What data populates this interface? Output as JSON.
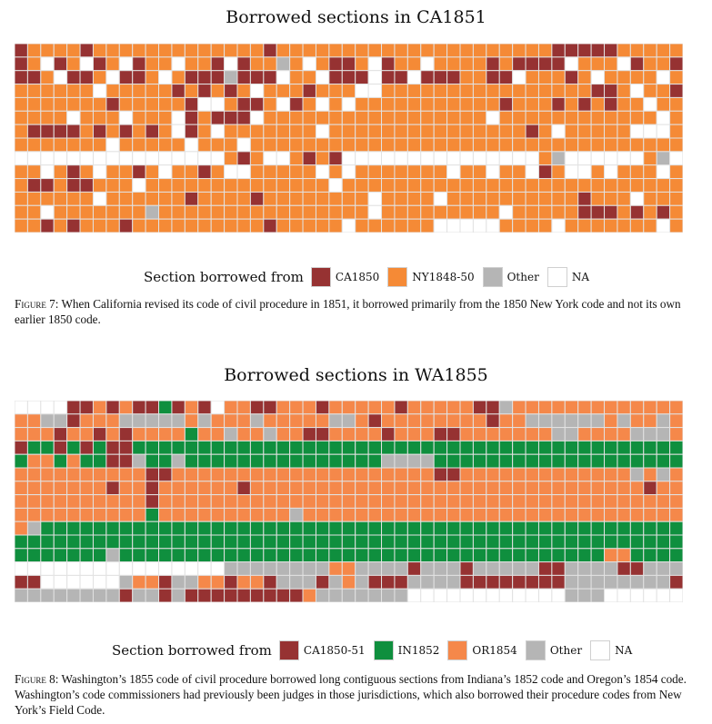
{
  "chart_data": [
    {
      "type": "heatmap",
      "title": "Borrowed sections in CA1851",
      "legend_lead": "Section borrowed from",
      "cols": 51,
      "rows": 14,
      "legend": [
        {
          "code": "C",
          "label": "CA1850",
          "color": "#963232"
        },
        {
          "code": "N",
          "label": "NY1848-50",
          "color": "#f58a36"
        },
        {
          "code": "G",
          "label": "Other",
          "color": "#b5b5b5"
        },
        {
          "code": "_",
          "label": "NA",
          "color": "#ffffff"
        }
      ],
      "cells": [
        "CNNNNCNNNNNNNNNNNNNCNNNNNNNNNNNNNNNNNNNNNCCCCCNNNNN",
        "CN_CN_CN_CNN_NNC_CNNGN_NCCN_CNN_NNNNCNCCCC_NNN_CNNC",
        "CCN_CCN_CCN_NCCCGCCC_NN_CCC_CC_CCCNNCC_NNNCN_NNNN_N",
        "NNNNNN_NNNNNCNCNCN_NNNCNNN__NNNNNNNNNNNNNNNNCCN_NNC",
        "NNNNNNNCNNNNNC__NCCN_CN_N_NNNNNNNNNNNCNNNCNCNCNN_NN",
        "NNNN_NNN_NNN_CNCCC_NNNNNNNNNNNNNNNNN_NNNNNNNNNNNN_N",
        "NCCCCNCNCNCN_CN_NNNNNNN_NNNNNNNNNNNNNNNCN_NNNNN___N",
        "NNNNNNN_NNNNN_NNN_NNNNNNNNNNNNNNNNNNNNNNNNNNNNNNNNN",
        "________________NCN__NCNC_______________NG______NG_",
        "NN_NCN_NNCN_NNCN__NNNNN_N_NNNNNNN_NN_NN_CN__N_NNN_N",
        "NCCNCCNNN_NNNNNNNNNNNNNN_NNNNNNNNNNNNNNNNNNNNNNNNNN",
        "NNNNNN_NNNNNNCNNNNCNNNNNNNN_NNNN_NNNNNNNNNNCNNN_NNN",
        "NN_NNNNNNNGNNNNNNNNNNNNNNNN_NNNNNNNNN_NNNNNCCCNCNCN",
        "NNCNCNNNCNNNNNNNNNNCNNNNN_NNNNNN_____NNNN_NNNNNNN_N"
      ]
    },
    {
      "type": "heatmap",
      "title": "Borrowed sections in WA1855",
      "legend_lead": "Section borrowed from",
      "cols": 51,
      "rows": 15,
      "legend": [
        {
          "code": "C",
          "label": "CA1850-51",
          "color": "#963232"
        },
        {
          "code": "I",
          "label": "IN1852",
          "color": "#0f8f3e"
        },
        {
          "code": "O",
          "label": "OR1854",
          "color": "#f5884a"
        },
        {
          "code": "G",
          "label": "Other",
          "color": "#b5b5b5"
        },
        {
          "code": "_",
          "label": "NA",
          "color": "#ffffff"
        }
      ],
      "cells": [
        "____CCOCOCCICOC_OOCCOOOCOOOOOCOOOOOCCGOOOOOOOOOOOOO",
        "OOGGCOOOGGGGGOGOOOGOOOOOGGOCOOOOOOOOCOOGGGGGGOGOOGO",
        "OOOCOOCOCOOOOIOOGOOGOOCCOOOOCOOOCCOOOOOOOGGOOOOGGGO",
        "CIICICICCIIIIIIIIIIIIIIIIIIIIIIIIIIIIIIIIIIIIIIIIII",
        "IOOIOIICCGIIGIIIIIIIIIIIIIIIGGGGIIIIIIIIIIIIIIIIIII",
        "OOOOOOOOOOCCOOOOOOOOOOOOOOOOOOOOCCOOOOOOOOOOOOOGOGO",
        "OOOOOOOCOOCOOOOOOCOOOOOOOOOOOOOOOOOOOOOOOOOOOOOOCOO",
        "OOOOOOOOOOCOOOOOOOOOOOOOOOOOOOOOOOOOOOOOOOOOOOOOOOO",
        "OOOOOOOOOOIOOOOOOOOOOGOOOOOOOOOOOOOOOOOOOOOOOOOOOOO",
        "OGIIIIIIIIIIIIIIIIIIIIIIIIIIIIIIIIIIIIIIIIIIIIIIIII",
        "IIIIIIIIIIIIIIIIIIIIIIIIIIIIIIIIIIIIIIIIIIIIIIIIIII",
        "IIIIIIIGIIIIIIIIIIIIIIIIIIIIIIIIIIIIIIIIIIIIIOOIIII",
        "________________GGGGGGGGOOGGGGCGGGCGGGGGCCGGGGCCGGG",
        "CC______GOOCGGOOCOOCGGGCGOGCCCGGGGCCCCCCCCGGGGGGGGC",
        "GGGGGGGGCGGCGCCCCCCCCCOGGGGGGG____________GGG______"
      ]
    }
  ],
  "figures": {
    "fig7_label": "Figure 7:",
    "fig7_text": " When California revised its code of civil procedure in 1851, it borrowed primarily from the 1850 New York code and not its own earlier 1850 code.",
    "fig8_label": "Figure 8:",
    "fig8_text": " Washington’s 1855 code of civil procedure borrowed long contiguous sections from Indiana’s 1852 code and Oregon’s 1854 code. Washington’s code commissioners had previously been judges in those jurisdictions, which also borrowed their procedure codes from New York’s Field Code."
  }
}
